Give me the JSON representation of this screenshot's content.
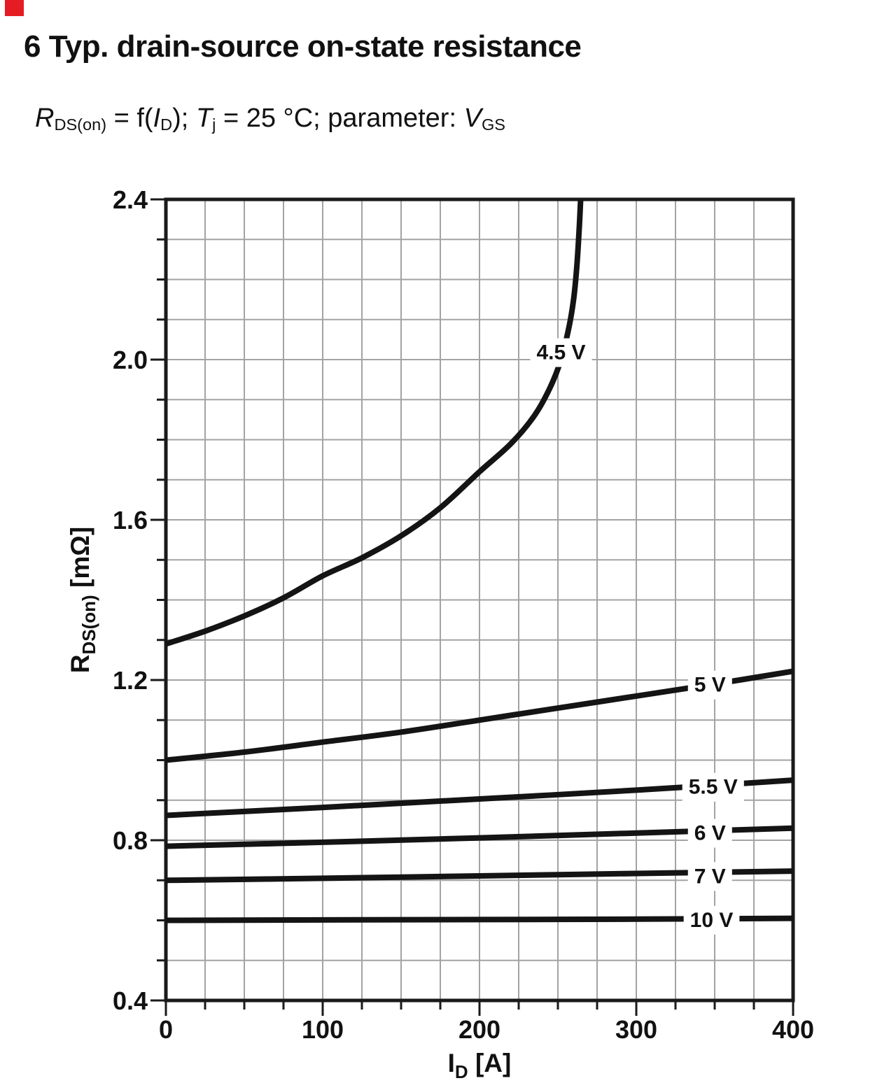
{
  "page": {
    "title": "6 Typ. drain-source on-state resistance",
    "corner_mark_color": "#e51c23"
  },
  "subtitle_segments": [
    {
      "text": "R",
      "style": "i"
    },
    {
      "text": "DS(on)",
      "style": "sub"
    },
    {
      "text": " = f(",
      "style": "n"
    },
    {
      "text": "I",
      "style": "i"
    },
    {
      "text": "D",
      "style": "sub"
    },
    {
      "text": "); ",
      "style": "n"
    },
    {
      "text": "T",
      "style": "i"
    },
    {
      "text": "j",
      "style": "sub"
    },
    {
      "text": " = 25 °C; parameter: ",
      "style": "n"
    },
    {
      "text": "V",
      "style": "i"
    },
    {
      "text": "GS",
      "style": "sub"
    }
  ],
  "chart_data": {
    "type": "line",
    "title": "Typ. drain-source on-state resistance",
    "condition": "Tj = 25 °C",
    "parameter": "VGS",
    "xlabel_segments": [
      {
        "text": "I"
      },
      {
        "text": "D",
        "sub": true
      },
      {
        "text": " [A]"
      }
    ],
    "ylabel_segments": [
      {
        "text": "R"
      },
      {
        "text": "DS(on)",
        "sub": true
      },
      {
        "text": " [mΩ]"
      }
    ],
    "xlim": [
      0,
      400
    ],
    "ylim": [
      0.4,
      2.4
    ],
    "x_major_ticks": [
      0,
      100,
      200,
      300,
      400
    ],
    "x_minor_step": 25,
    "y_major_ticks": [
      0.4,
      0.8,
      1.2,
      1.6,
      2.0,
      2.4
    ],
    "y_minor_step": 0.1,
    "grid": true,
    "grid_color": "#a3a3a3",
    "curve_color": "#141414",
    "series": [
      {
        "name": "4.5 V",
        "label": {
          "x": 252,
          "y": 2.02
        },
        "points": [
          [
            0,
            1.29
          ],
          [
            25,
            1.322
          ],
          [
            50,
            1.36
          ],
          [
            75,
            1.405
          ],
          [
            100,
            1.46
          ],
          [
            125,
            1.505
          ],
          [
            150,
            1.56
          ],
          [
            175,
            1.63
          ],
          [
            200,
            1.72
          ],
          [
            220,
            1.79
          ],
          [
            235,
            1.86
          ],
          [
            245,
            1.93
          ],
          [
            252,
            2.0
          ],
          [
            257,
            2.08
          ],
          [
            260,
            2.15
          ],
          [
            262,
            2.23
          ],
          [
            263.5,
            2.32
          ],
          [
            264.5,
            2.4
          ]
        ]
      },
      {
        "name": "5 V",
        "label": {
          "x": 347,
          "y": 1.19
        },
        "points": [
          [
            0,
            1.0
          ],
          [
            50,
            1.02
          ],
          [
            100,
            1.045
          ],
          [
            150,
            1.07
          ],
          [
            200,
            1.1
          ],
          [
            250,
            1.13
          ],
          [
            300,
            1.16
          ],
          [
            350,
            1.19
          ],
          [
            400,
            1.222
          ]
        ]
      },
      {
        "name": "5.5 V",
        "label": {
          "x": 349,
          "y": 0.935
        },
        "points": [
          [
            0,
            0.862
          ],
          [
            100,
            0.882
          ],
          [
            200,
            0.903
          ],
          [
            300,
            0.925
          ],
          [
            400,
            0.95
          ]
        ]
      },
      {
        "name": "6 V",
        "label": {
          "x": 347,
          "y": 0.82
        },
        "points": [
          [
            0,
            0.785
          ],
          [
            100,
            0.795
          ],
          [
            200,
            0.806
          ],
          [
            300,
            0.818
          ],
          [
            400,
            0.83
          ]
        ]
      },
      {
        "name": "7 V",
        "label": {
          "x": 347,
          "y": 0.712
        },
        "points": [
          [
            0,
            0.7
          ],
          [
            100,
            0.705
          ],
          [
            200,
            0.711
          ],
          [
            300,
            0.717
          ],
          [
            400,
            0.723
          ]
        ]
      },
      {
        "name": "10 V",
        "label": {
          "x": 348,
          "y": 0.603
        },
        "points": [
          [
            0,
            0.6
          ],
          [
            100,
            0.601
          ],
          [
            200,
            0.602
          ],
          [
            300,
            0.603
          ],
          [
            400,
            0.605
          ]
        ]
      }
    ]
  }
}
